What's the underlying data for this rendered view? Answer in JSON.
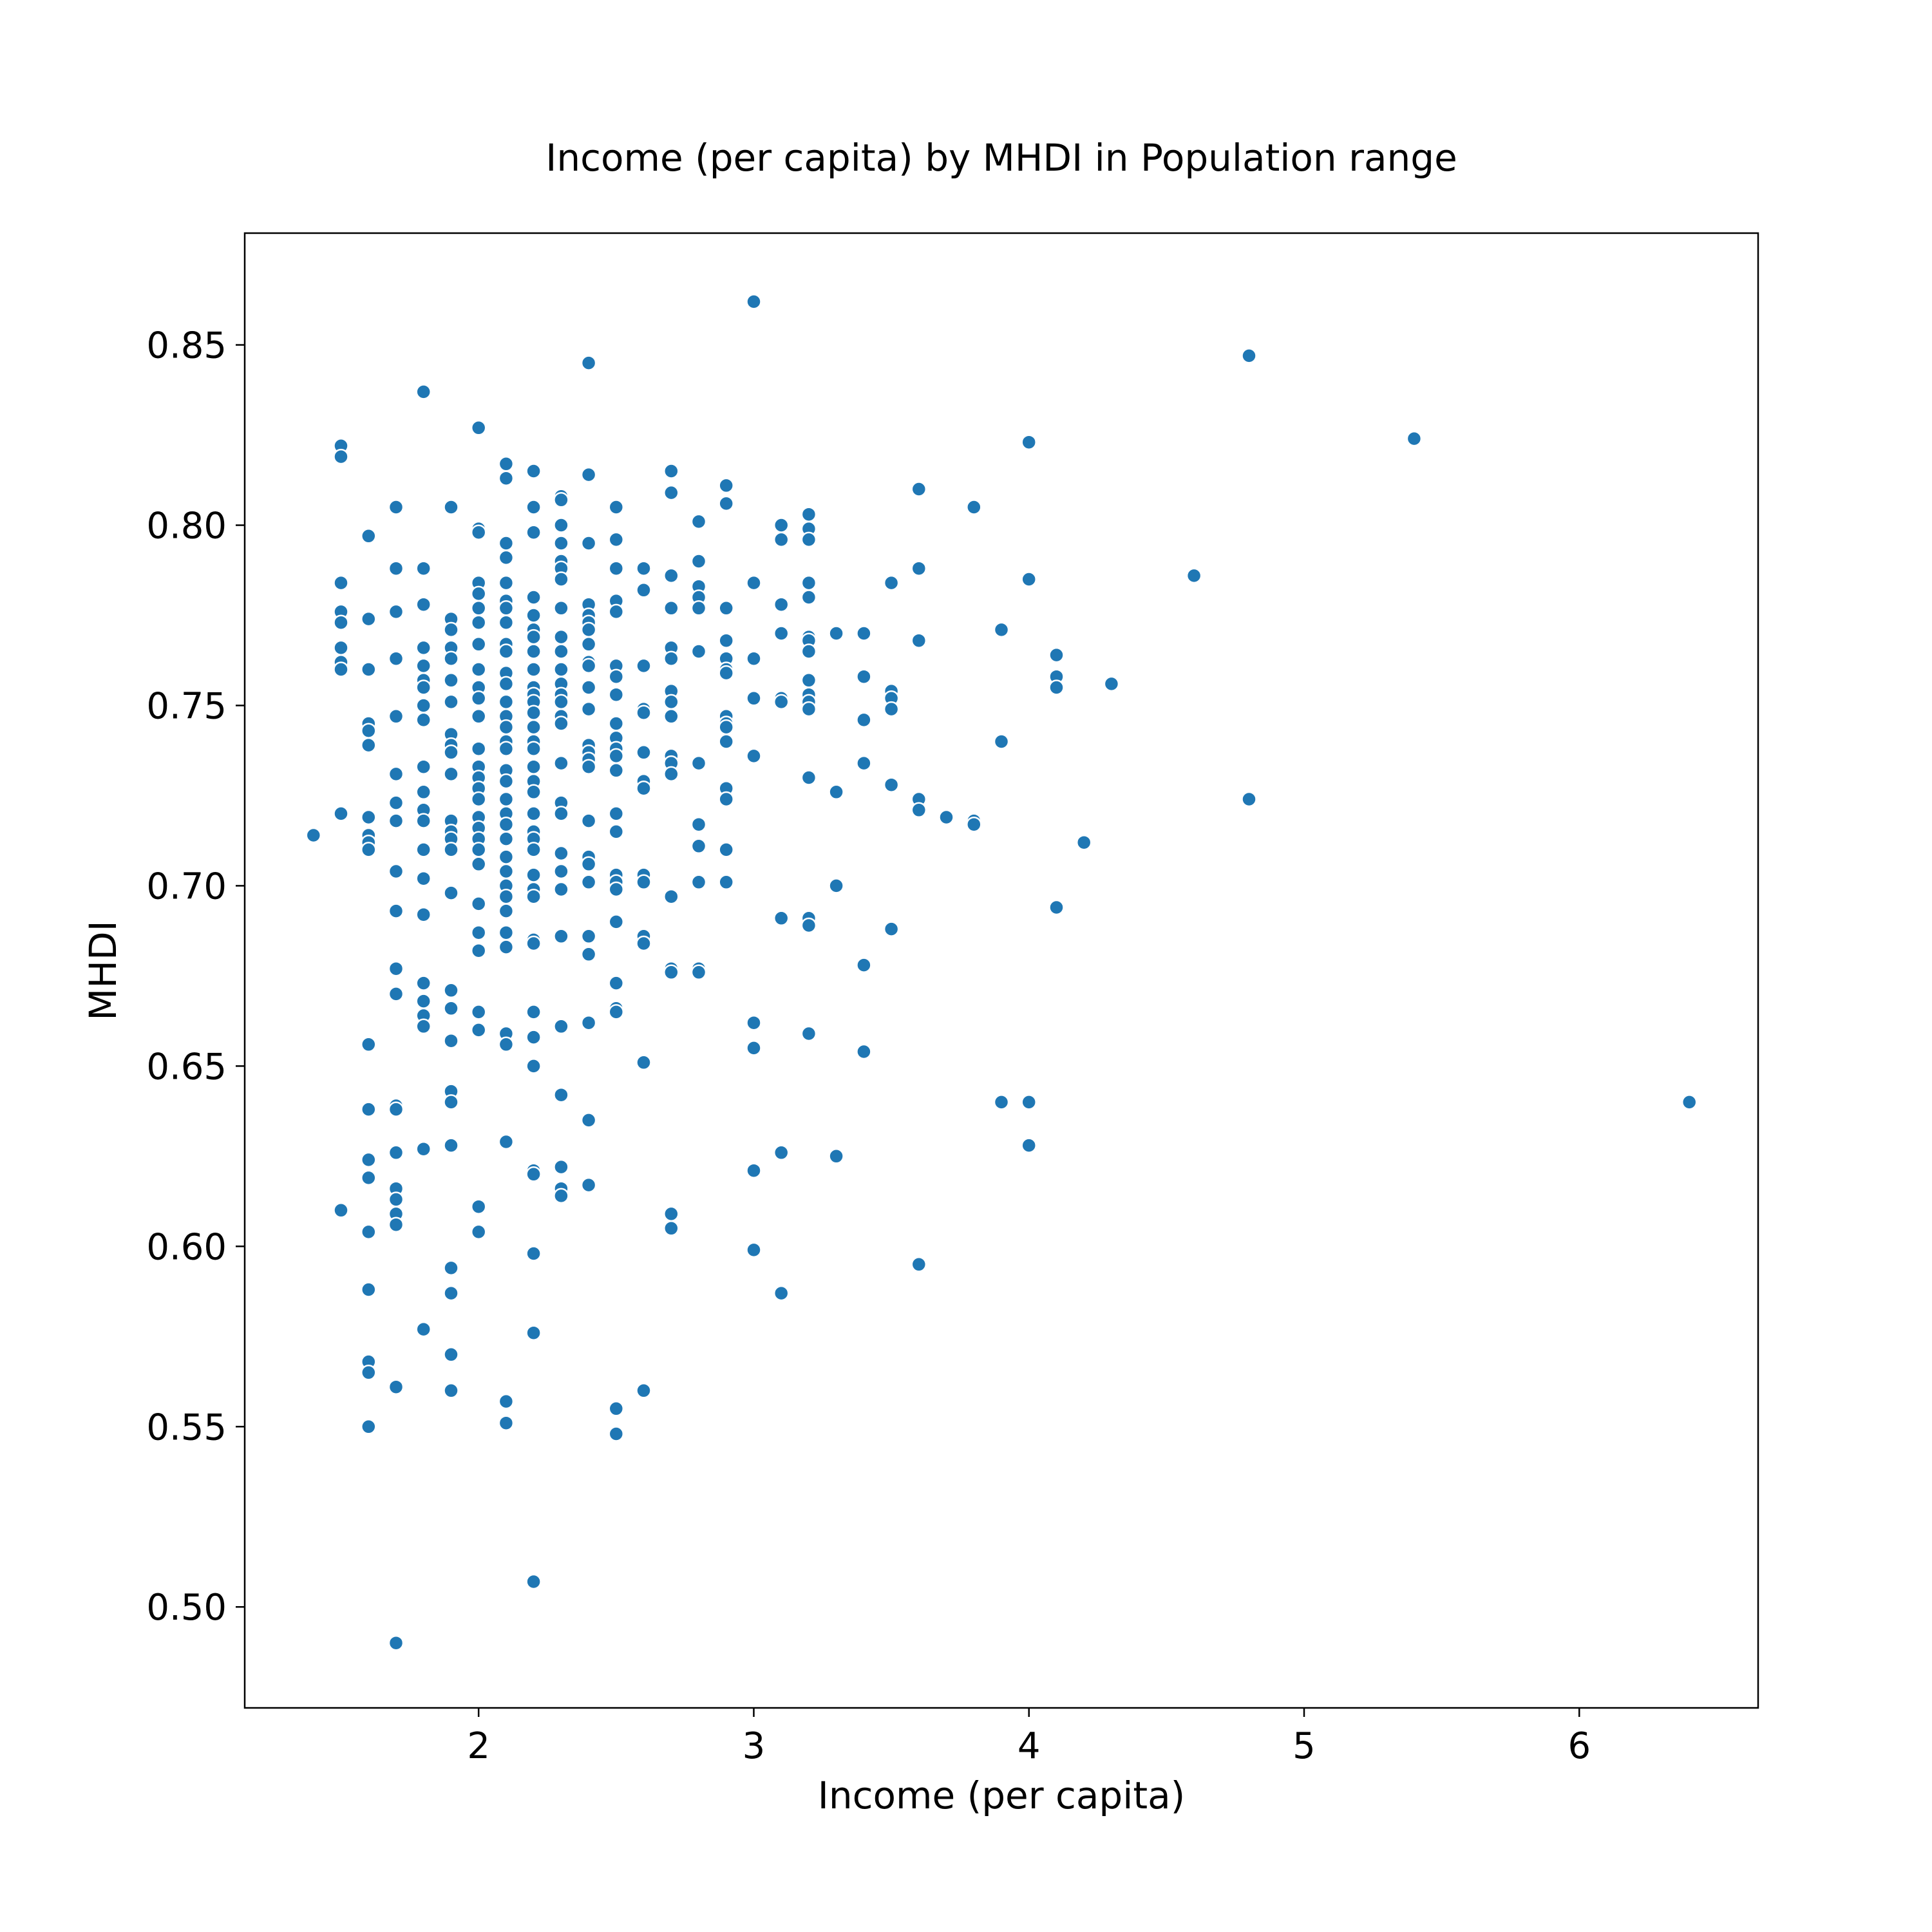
{
  "chart_data": {
    "type": "scatter",
    "title": "Income (per capita) by MHDI in Population range",
    "xlabel": "Income (per capita)",
    "ylabel": "MHDI",
    "xlim": [
      1.15,
      6.65
    ],
    "ylim": [
      0.472,
      0.881
    ],
    "xticks": [
      2,
      3,
      4,
      5,
      6
    ],
    "yticks": [
      0.5,
      0.55,
      0.6,
      0.65,
      0.7,
      0.75,
      0.8,
      0.85
    ],
    "xtick_labels": [
      "2",
      "3",
      "4",
      "5",
      "6"
    ],
    "ytick_labels": [
      "0.50",
      "0.55",
      "0.60",
      "0.65",
      "0.70",
      "0.75",
      "0.80",
      "0.85"
    ],
    "grid": false,
    "legend": "none",
    "marker_color": "#1f77b4",
    "marker_edge_color": "#ffffff",
    "points": [
      [
        1.4,
        0.714
      ],
      [
        1.5,
        0.822
      ],
      [
        1.5,
        0.819
      ],
      [
        1.5,
        0.784
      ],
      [
        1.5,
        0.776
      ],
      [
        1.5,
        0.773
      ],
      [
        1.5,
        0.766
      ],
      [
        1.5,
        0.762
      ],
      [
        1.5,
        0.76
      ],
      [
        1.5,
        0.72
      ],
      [
        1.5,
        0.61
      ],
      [
        1.6,
        0.797
      ],
      [
        1.6,
        0.774
      ],
      [
        1.6,
        0.76
      ],
      [
        1.6,
        0.745
      ],
      [
        1.6,
        0.743
      ],
      [
        1.6,
        0.739
      ],
      [
        1.6,
        0.719
      ],
      [
        1.6,
        0.714
      ],
      [
        1.6,
        0.712
      ],
      [
        1.6,
        0.71
      ],
      [
        1.6,
        0.656
      ],
      [
        1.6,
        0.638
      ],
      [
        1.6,
        0.624
      ],
      [
        1.6,
        0.619
      ],
      [
        1.6,
        0.604
      ],
      [
        1.6,
        0.588
      ],
      [
        1.6,
        0.568
      ],
      [
        1.6,
        0.565
      ],
      [
        1.6,
        0.55
      ],
      [
        1.7,
        0.805
      ],
      [
        1.7,
        0.788
      ],
      [
        1.7,
        0.776
      ],
      [
        1.7,
        0.763
      ],
      [
        1.7,
        0.747
      ],
      [
        1.7,
        0.731
      ],
      [
        1.7,
        0.723
      ],
      [
        1.7,
        0.718
      ],
      [
        1.7,
        0.704
      ],
      [
        1.7,
        0.693
      ],
      [
        1.7,
        0.677
      ],
      [
        1.7,
        0.67
      ],
      [
        1.7,
        0.639
      ],
      [
        1.7,
        0.638
      ],
      [
        1.7,
        0.626
      ],
      [
        1.7,
        0.616
      ],
      [
        1.7,
        0.613
      ],
      [
        1.7,
        0.609
      ],
      [
        1.7,
        0.606
      ],
      [
        1.7,
        0.561
      ],
      [
        1.7,
        0.49
      ],
      [
        1.8,
        0.837
      ],
      [
        1.8,
        0.788
      ],
      [
        1.8,
        0.778
      ],
      [
        1.8,
        0.766
      ],
      [
        1.8,
        0.761
      ],
      [
        1.8,
        0.757
      ],
      [
        1.8,
        0.755
      ],
      [
        1.8,
        0.75
      ],
      [
        1.8,
        0.746
      ],
      [
        1.8,
        0.733
      ],
      [
        1.8,
        0.726
      ],
      [
        1.8,
        0.721
      ],
      [
        1.8,
        0.718
      ],
      [
        1.8,
        0.71
      ],
      [
        1.8,
        0.702
      ],
      [
        1.8,
        0.692
      ],
      [
        1.8,
        0.673
      ],
      [
        1.8,
        0.668
      ],
      [
        1.8,
        0.664
      ],
      [
        1.8,
        0.661
      ],
      [
        1.8,
        0.627
      ],
      [
        1.8,
        0.577
      ],
      [
        1.9,
        0.805
      ],
      [
        1.9,
        0.774
      ],
      [
        1.9,
        0.771
      ],
      [
        1.9,
        0.766
      ],
      [
        1.9,
        0.763
      ],
      [
        1.9,
        0.757
      ],
      [
        1.9,
        0.751
      ],
      [
        1.9,
        0.742
      ],
      [
        1.9,
        0.739
      ],
      [
        1.9,
        0.737
      ],
      [
        1.9,
        0.731
      ],
      [
        1.9,
        0.718
      ],
      [
        1.9,
        0.715
      ],
      [
        1.9,
        0.713
      ],
      [
        1.9,
        0.71
      ],
      [
        1.9,
        0.698
      ],
      [
        1.9,
        0.671
      ],
      [
        1.9,
        0.666
      ],
      [
        1.9,
        0.657
      ],
      [
        1.9,
        0.643
      ],
      [
        1.9,
        0.64
      ],
      [
        1.9,
        0.628
      ],
      [
        1.9,
        0.594
      ],
      [
        1.9,
        0.587
      ],
      [
        1.9,
        0.57
      ],
      [
        1.9,
        0.56
      ],
      [
        2.0,
        0.827
      ],
      [
        2.0,
        0.799
      ],
      [
        2.0,
        0.798
      ],
      [
        2.0,
        0.784
      ],
      [
        2.0,
        0.781
      ],
      [
        2.0,
        0.777
      ],
      [
        2.0,
        0.773
      ],
      [
        2.0,
        0.767
      ],
      [
        2.0,
        0.76
      ],
      [
        2.0,
        0.755
      ],
      [
        2.0,
        0.752
      ],
      [
        2.0,
        0.747
      ],
      [
        2.0,
        0.738
      ],
      [
        2.0,
        0.733
      ],
      [
        2.0,
        0.73
      ],
      [
        2.0,
        0.727
      ],
      [
        2.0,
        0.724
      ],
      [
        2.0,
        0.719
      ],
      [
        2.0,
        0.716
      ],
      [
        2.0,
        0.713
      ],
      [
        2.0,
        0.71
      ],
      [
        2.0,
        0.706
      ],
      [
        2.0,
        0.695
      ],
      [
        2.0,
        0.687
      ],
      [
        2.0,
        0.682
      ],
      [
        2.0,
        0.665
      ],
      [
        2.0,
        0.66
      ],
      [
        2.0,
        0.611
      ],
      [
        2.0,
        0.604
      ],
      [
        2.1,
        0.817
      ],
      [
        2.1,
        0.813
      ],
      [
        2.1,
        0.795
      ],
      [
        2.1,
        0.791
      ],
      [
        2.1,
        0.784
      ],
      [
        2.1,
        0.779
      ],
      [
        2.1,
        0.777
      ],
      [
        2.1,
        0.773
      ],
      [
        2.1,
        0.767
      ],
      [
        2.1,
        0.765
      ],
      [
        2.1,
        0.759
      ],
      [
        2.1,
        0.756
      ],
      [
        2.1,
        0.751
      ],
      [
        2.1,
        0.747
      ],
      [
        2.1,
        0.744
      ],
      [
        2.1,
        0.74
      ],
      [
        2.1,
        0.738
      ],
      [
        2.1,
        0.732
      ],
      [
        2.1,
        0.729
      ],
      [
        2.1,
        0.724
      ],
      [
        2.1,
        0.72
      ],
      [
        2.1,
        0.717
      ],
      [
        2.1,
        0.713
      ],
      [
        2.1,
        0.708
      ],
      [
        2.1,
        0.704
      ],
      [
        2.1,
        0.7
      ],
      [
        2.1,
        0.697
      ],
      [
        2.1,
        0.693
      ],
      [
        2.1,
        0.687
      ],
      [
        2.1,
        0.683
      ],
      [
        2.1,
        0.659
      ],
      [
        2.1,
        0.656
      ],
      [
        2.1,
        0.629
      ],
      [
        2.1,
        0.557
      ],
      [
        2.1,
        0.551
      ],
      [
        2.2,
        0.815
      ],
      [
        2.2,
        0.805
      ],
      [
        2.2,
        0.798
      ],
      [
        2.2,
        0.78
      ],
      [
        2.2,
        0.775
      ],
      [
        2.2,
        0.771
      ],
      [
        2.2,
        0.769
      ],
      [
        2.2,
        0.765
      ],
      [
        2.2,
        0.76
      ],
      [
        2.2,
        0.755
      ],
      [
        2.2,
        0.753
      ],
      [
        2.2,
        0.751
      ],
      [
        2.2,
        0.748
      ],
      [
        2.2,
        0.744
      ],
      [
        2.2,
        0.74
      ],
      [
        2.2,
        0.738
      ],
      [
        2.2,
        0.733
      ],
      [
        2.2,
        0.729
      ],
      [
        2.2,
        0.726
      ],
      [
        2.2,
        0.72
      ],
      [
        2.2,
        0.715
      ],
      [
        2.2,
        0.713
      ],
      [
        2.2,
        0.71
      ],
      [
        2.2,
        0.703
      ],
      [
        2.2,
        0.699
      ],
      [
        2.2,
        0.697
      ],
      [
        2.2,
        0.685
      ],
      [
        2.2,
        0.684
      ],
      [
        2.2,
        0.665
      ],
      [
        2.2,
        0.658
      ],
      [
        2.2,
        0.65
      ],
      [
        2.2,
        0.621
      ],
      [
        2.2,
        0.62
      ],
      [
        2.2,
        0.598
      ],
      [
        2.2,
        0.576
      ],
      [
        2.2,
        0.507
      ],
      [
        2.3,
        0.808
      ],
      [
        2.3,
        0.807
      ],
      [
        2.3,
        0.8
      ],
      [
        2.3,
        0.795
      ],
      [
        2.3,
        0.79
      ],
      [
        2.3,
        0.788
      ],
      [
        2.3,
        0.785
      ],
      [
        2.3,
        0.777
      ],
      [
        2.3,
        0.769
      ],
      [
        2.3,
        0.765
      ],
      [
        2.3,
        0.76
      ],
      [
        2.3,
        0.756
      ],
      [
        2.3,
        0.753
      ],
      [
        2.3,
        0.751
      ],
      [
        2.3,
        0.747
      ],
      [
        2.3,
        0.745
      ],
      [
        2.3,
        0.734
      ],
      [
        2.3,
        0.723
      ],
      [
        2.3,
        0.72
      ],
      [
        2.3,
        0.709
      ],
      [
        2.3,
        0.704
      ],
      [
        2.3,
        0.699
      ],
      [
        2.3,
        0.686
      ],
      [
        2.3,
        0.661
      ],
      [
        2.3,
        0.642
      ],
      [
        2.3,
        0.622
      ],
      [
        2.3,
        0.616
      ],
      [
        2.3,
        0.614
      ],
      [
        2.4,
        0.845
      ],
      [
        2.4,
        0.814
      ],
      [
        2.4,
        0.795
      ],
      [
        2.4,
        0.778
      ],
      [
        2.4,
        0.775
      ],
      [
        2.4,
        0.773
      ],
      [
        2.4,
        0.771
      ],
      [
        2.4,
        0.767
      ],
      [
        2.4,
        0.762
      ],
      [
        2.4,
        0.761
      ],
      [
        2.4,
        0.755
      ],
      [
        2.4,
        0.749
      ],
      [
        2.4,
        0.739
      ],
      [
        2.4,
        0.737
      ],
      [
        2.4,
        0.735
      ],
      [
        2.4,
        0.733
      ],
      [
        2.4,
        0.718
      ],
      [
        2.4,
        0.708
      ],
      [
        2.4,
        0.706
      ],
      [
        2.4,
        0.701
      ],
      [
        2.4,
        0.686
      ],
      [
        2.4,
        0.681
      ],
      [
        2.4,
        0.662
      ],
      [
        2.4,
        0.635
      ],
      [
        2.4,
        0.617
      ],
      [
        2.5,
        0.805
      ],
      [
        2.5,
        0.796
      ],
      [
        2.5,
        0.788
      ],
      [
        2.5,
        0.779
      ],
      [
        2.5,
        0.776
      ],
      [
        2.5,
        0.761
      ],
      [
        2.5,
        0.758
      ],
      [
        2.5,
        0.753
      ],
      [
        2.5,
        0.745
      ],
      [
        2.5,
        0.741
      ],
      [
        2.5,
        0.738
      ],
      [
        2.5,
        0.736
      ],
      [
        2.5,
        0.732
      ],
      [
        2.5,
        0.72
      ],
      [
        2.5,
        0.715
      ],
      [
        2.5,
        0.703
      ],
      [
        2.5,
        0.701
      ],
      [
        2.5,
        0.699
      ],
      [
        2.5,
        0.69
      ],
      [
        2.5,
        0.673
      ],
      [
        2.5,
        0.666
      ],
      [
        2.5,
        0.665
      ],
      [
        2.5,
        0.555
      ],
      [
        2.5,
        0.548
      ],
      [
        2.6,
        0.788
      ],
      [
        2.6,
        0.782
      ],
      [
        2.6,
        0.761
      ],
      [
        2.6,
        0.749
      ],
      [
        2.6,
        0.748
      ],
      [
        2.6,
        0.737
      ],
      [
        2.6,
        0.729
      ],
      [
        2.6,
        0.727
      ],
      [
        2.6,
        0.703
      ],
      [
        2.6,
        0.701
      ],
      [
        2.6,
        0.686
      ],
      [
        2.6,
        0.684
      ],
      [
        2.6,
        0.651
      ],
      [
        2.6,
        0.56
      ],
      [
        2.7,
        0.815
      ],
      [
        2.7,
        0.809
      ],
      [
        2.7,
        0.786
      ],
      [
        2.7,
        0.777
      ],
      [
        2.7,
        0.766
      ],
      [
        2.7,
        0.763
      ],
      [
        2.7,
        0.754
      ],
      [
        2.7,
        0.751
      ],
      [
        2.7,
        0.747
      ],
      [
        2.7,
        0.736
      ],
      [
        2.7,
        0.734
      ],
      [
        2.7,
        0.731
      ],
      [
        2.7,
        0.697
      ],
      [
        2.7,
        0.677
      ],
      [
        2.7,
        0.676
      ],
      [
        2.7,
        0.609
      ],
      [
        2.7,
        0.605
      ],
      [
        2.8,
        0.801
      ],
      [
        2.8,
        0.79
      ],
      [
        2.8,
        0.783
      ],
      [
        2.8,
        0.78
      ],
      [
        2.8,
        0.777
      ],
      [
        2.8,
        0.765
      ],
      [
        2.8,
        0.734
      ],
      [
        2.8,
        0.717
      ],
      [
        2.8,
        0.711
      ],
      [
        2.8,
        0.701
      ],
      [
        2.8,
        0.677
      ],
      [
        2.8,
        0.676
      ],
      [
        2.9,
        0.811
      ],
      [
        2.9,
        0.806
      ],
      [
        2.9,
        0.777
      ],
      [
        2.9,
        0.768
      ],
      [
        2.9,
        0.763
      ],
      [
        2.9,
        0.76
      ],
      [
        2.9,
        0.759
      ],
      [
        2.9,
        0.747
      ],
      [
        2.9,
        0.745
      ],
      [
        2.9,
        0.744
      ],
      [
        2.9,
        0.74
      ],
      [
        2.9,
        0.727
      ],
      [
        2.9,
        0.724
      ],
      [
        2.9,
        0.71
      ],
      [
        2.9,
        0.701
      ],
      [
        3.0,
        0.862
      ],
      [
        3.0,
        0.784
      ],
      [
        3.0,
        0.763
      ],
      [
        3.0,
        0.752
      ],
      [
        3.0,
        0.736
      ],
      [
        3.0,
        0.662
      ],
      [
        3.0,
        0.655
      ],
      [
        3.0,
        0.621
      ],
      [
        3.0,
        0.599
      ],
      [
        3.1,
        0.8
      ],
      [
        3.1,
        0.796
      ],
      [
        3.1,
        0.778
      ],
      [
        3.1,
        0.77
      ],
      [
        3.1,
        0.752
      ],
      [
        3.1,
        0.751
      ],
      [
        3.1,
        0.691
      ],
      [
        3.1,
        0.626
      ],
      [
        3.1,
        0.587
      ],
      [
        3.2,
        0.803
      ],
      [
        3.2,
        0.799
      ],
      [
        3.2,
        0.796
      ],
      [
        3.2,
        0.784
      ],
      [
        3.2,
        0.78
      ],
      [
        3.2,
        0.769
      ],
      [
        3.2,
        0.768
      ],
      [
        3.2,
        0.765
      ],
      [
        3.2,
        0.757
      ],
      [
        3.2,
        0.753
      ],
      [
        3.2,
        0.751
      ],
      [
        3.2,
        0.749
      ],
      [
        3.2,
        0.73
      ],
      [
        3.2,
        0.691
      ],
      [
        3.2,
        0.689
      ],
      [
        3.2,
        0.659
      ],
      [
        3.3,
        0.77
      ],
      [
        3.3,
        0.726
      ],
      [
        3.3,
        0.7
      ],
      [
        3.3,
        0.625
      ],
      [
        3.4,
        0.77
      ],
      [
        3.4,
        0.758
      ],
      [
        3.4,
        0.746
      ],
      [
        3.4,
        0.734
      ],
      [
        3.4,
        0.678
      ],
      [
        3.4,
        0.654
      ],
      [
        3.5,
        0.784
      ],
      [
        3.5,
        0.754
      ],
      [
        3.5,
        0.752
      ],
      [
        3.5,
        0.749
      ],
      [
        3.5,
        0.728
      ],
      [
        3.5,
        0.688
      ],
      [
        3.6,
        0.81
      ],
      [
        3.6,
        0.788
      ],
      [
        3.6,
        0.768
      ],
      [
        3.6,
        0.724
      ],
      [
        3.6,
        0.721
      ],
      [
        3.6,
        0.595
      ],
      [
        3.7,
        0.719
      ],
      [
        3.8,
        0.805
      ],
      [
        3.8,
        0.718
      ],
      [
        3.8,
        0.717
      ],
      [
        3.9,
        0.771
      ],
      [
        3.9,
        0.74
      ],
      [
        3.9,
        0.64
      ],
      [
        4.0,
        0.823
      ],
      [
        4.0,
        0.785
      ],
      [
        4.0,
        0.64
      ],
      [
        4.0,
        0.628
      ],
      [
        4.1,
        0.764
      ],
      [
        4.1,
        0.758
      ],
      [
        4.1,
        0.755
      ],
      [
        4.1,
        0.694
      ],
      [
        4.2,
        0.712
      ],
      [
        4.3,
        0.756
      ],
      [
        4.6,
        0.786
      ],
      [
        4.8,
        0.847
      ],
      [
        4.8,
        0.724
      ],
      [
        5.4,
        0.824
      ],
      [
        6.4,
        0.64
      ]
    ]
  }
}
